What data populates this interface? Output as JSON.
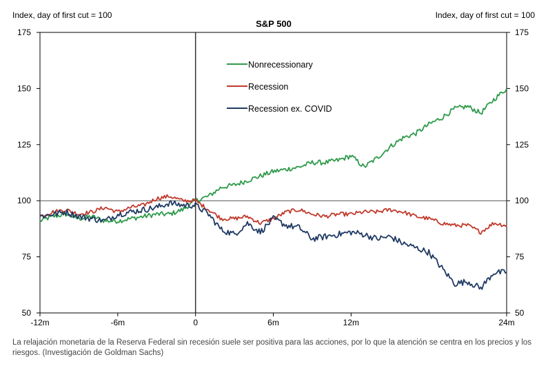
{
  "caption": "La relajación monetaria de la Reserva Federal sin recesión suele ser positiva para las acciones, por lo que la atención se centra en los precios y los riesgos. (Investigación de Goldman Sachs)",
  "chart_data": {
    "type": "line",
    "title": "S&P 500",
    "ylabel_left": "Index, day of first cut = 100",
    "ylabel_right": "Index, day of first cut = 100",
    "xlabel": "",
    "x_ticks": [
      {
        "value": -12,
        "label": "-12m"
      },
      {
        "value": -6,
        "label": "-6m"
      },
      {
        "value": 0,
        "label": "0"
      },
      {
        "value": 6,
        "label": "6m"
      },
      {
        "value": 12,
        "label": "12m"
      },
      {
        "value": 24,
        "label": "24m"
      }
    ],
    "y_ticks": [
      50,
      75,
      100,
      125,
      150,
      175
    ],
    "xlim": [
      -12,
      24
    ],
    "ylim": [
      50,
      175
    ],
    "reference_hline": 100,
    "reference_vline": 0,
    "grid": false,
    "legend_position": "top-center",
    "series": [
      {
        "name": "Nonrecessionary",
        "color": "#2e9a4a",
        "x": [
          -12,
          -11,
          -10,
          -9,
          -8,
          -7,
          -6,
          -5,
          -4,
          -3,
          -2,
          -1,
          0,
          1,
          2,
          3,
          4,
          5,
          6,
          7,
          8,
          9,
          10,
          11,
          12,
          13,
          14,
          15,
          16,
          17,
          18,
          19,
          20,
          21,
          22,
          23,
          24
        ],
        "y": [
          91,
          93,
          94,
          92,
          93,
          91,
          91,
          92,
          93,
          94,
          94,
          96,
          100,
          102,
          106,
          107,
          109,
          111,
          113,
          114,
          115,
          117,
          117,
          118,
          120,
          115,
          119,
          124,
          128,
          130,
          134,
          137,
          141,
          142,
          139,
          145,
          150
        ]
      },
      {
        "name": "Recession",
        "color": "#c0392b",
        "x": [
          -12,
          -11,
          -10,
          -9,
          -8,
          -7,
          -6,
          -5,
          -4,
          -3,
          -2,
          -1,
          0,
          1,
          2,
          3,
          4,
          5,
          6,
          7,
          8,
          9,
          10,
          11,
          12,
          13,
          14,
          15,
          16,
          17,
          18,
          19,
          20,
          21,
          22,
          23,
          24
        ],
        "y": [
          93,
          95,
          96,
          94,
          95,
          97,
          95,
          97,
          98,
          101,
          102,
          100,
          100,
          96,
          92,
          92,
          93,
          90,
          92,
          95,
          96,
          94,
          93,
          94,
          94,
          95,
          95,
          96,
          95,
          93,
          92,
          90,
          89,
          89,
          86,
          90,
          89
        ]
      },
      {
        "name": "Recession ex. COVID",
        "color": "#1f3a63",
        "x": [
          -12,
          -11,
          -10,
          -9,
          -8,
          -7,
          -6,
          -5,
          -4,
          -3,
          -2,
          -1,
          0,
          1,
          2,
          3,
          4,
          5,
          6,
          7,
          8,
          9,
          10,
          11,
          12,
          13,
          14,
          15,
          16,
          17,
          18,
          19,
          20,
          21,
          22,
          23,
          24
        ],
        "y": [
          93,
          94,
          95,
          93,
          92,
          91,
          94,
          95,
          96,
          97,
          99,
          98,
          98,
          94,
          87,
          85,
          90,
          86,
          92,
          89,
          88,
          83,
          84,
          85,
          86,
          85,
          83,
          84,
          81,
          79,
          77,
          70,
          63,
          64,
          61,
          68,
          68
        ]
      }
    ]
  }
}
